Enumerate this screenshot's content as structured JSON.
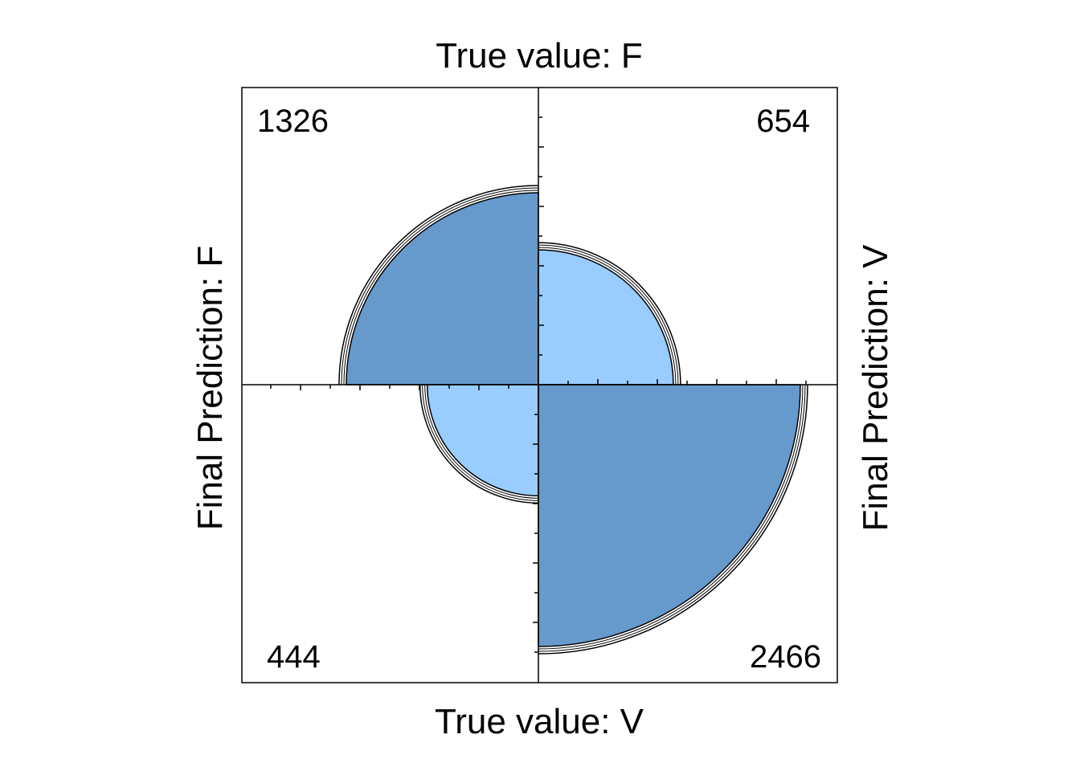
{
  "chart_data": {
    "type": "fourfold",
    "labels": {
      "top": "True value: F",
      "bottom": "True value: V",
      "left": "Final Prediction: F",
      "right": "Final Prediction: V"
    },
    "cells": [
      {
        "quadrant": "top-left",
        "true_value": "F",
        "prediction": "F",
        "count": 1326,
        "count_label": "1326"
      },
      {
        "quadrant": "top-right",
        "true_value": "F",
        "prediction": "V",
        "count": 654,
        "count_label": "654"
      },
      {
        "quadrant": "bottom-left",
        "true_value": "V",
        "prediction": "F",
        "count": 444,
        "count_label": "444"
      },
      {
        "quadrant": "bottom-right",
        "true_value": "V",
        "prediction": "V",
        "count": 2466,
        "count_label": "2466"
      }
    ],
    "colors": {
      "diagonal": "#6699CC",
      "off_diagonal": "#99CCFF",
      "outline": "#000000"
    },
    "grid": false
  }
}
